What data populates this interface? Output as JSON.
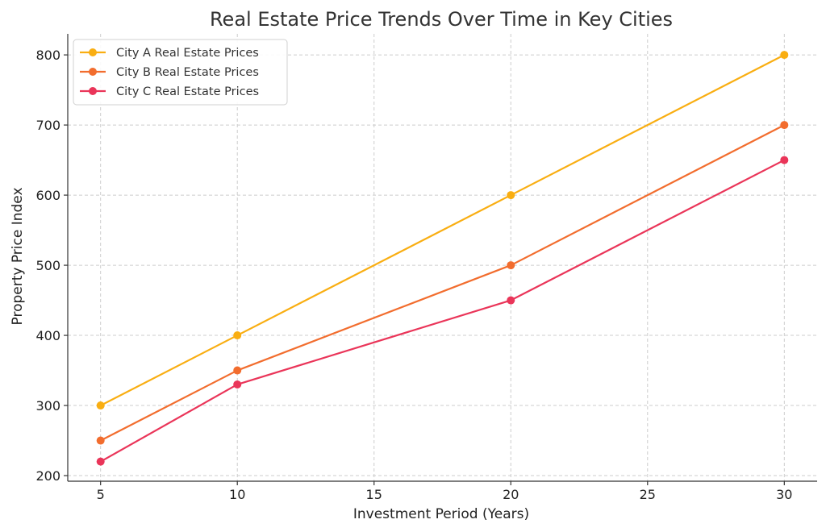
{
  "chart_data": {
    "type": "line",
    "title": "Real Estate Price Trends Over Time in Key Cities",
    "xlabel": "Investment Period (Years)",
    "ylabel": "Property Price Index",
    "x": [
      5,
      10,
      20,
      30
    ],
    "xlim": [
      3.8,
      31.2
    ],
    "ylim": [
      192,
      830
    ],
    "xticks": [
      5,
      10,
      15,
      20,
      25,
      30
    ],
    "yticks": [
      200,
      300,
      400,
      500,
      600,
      700,
      800
    ],
    "grid": true,
    "legend_position": "top-left",
    "series": [
      {
        "name": "City A Real Estate Prices",
        "values": [
          300,
          400,
          600,
          800
        ],
        "color": "#f9ae12"
      },
      {
        "name": "City B Real Estate Prices",
        "values": [
          250,
          350,
          500,
          700
        ],
        "color": "#f26d2e"
      },
      {
        "name": "City C Real Estate Prices",
        "values": [
          220,
          330,
          450,
          650
        ],
        "color": "#ea3559"
      }
    ]
  }
}
